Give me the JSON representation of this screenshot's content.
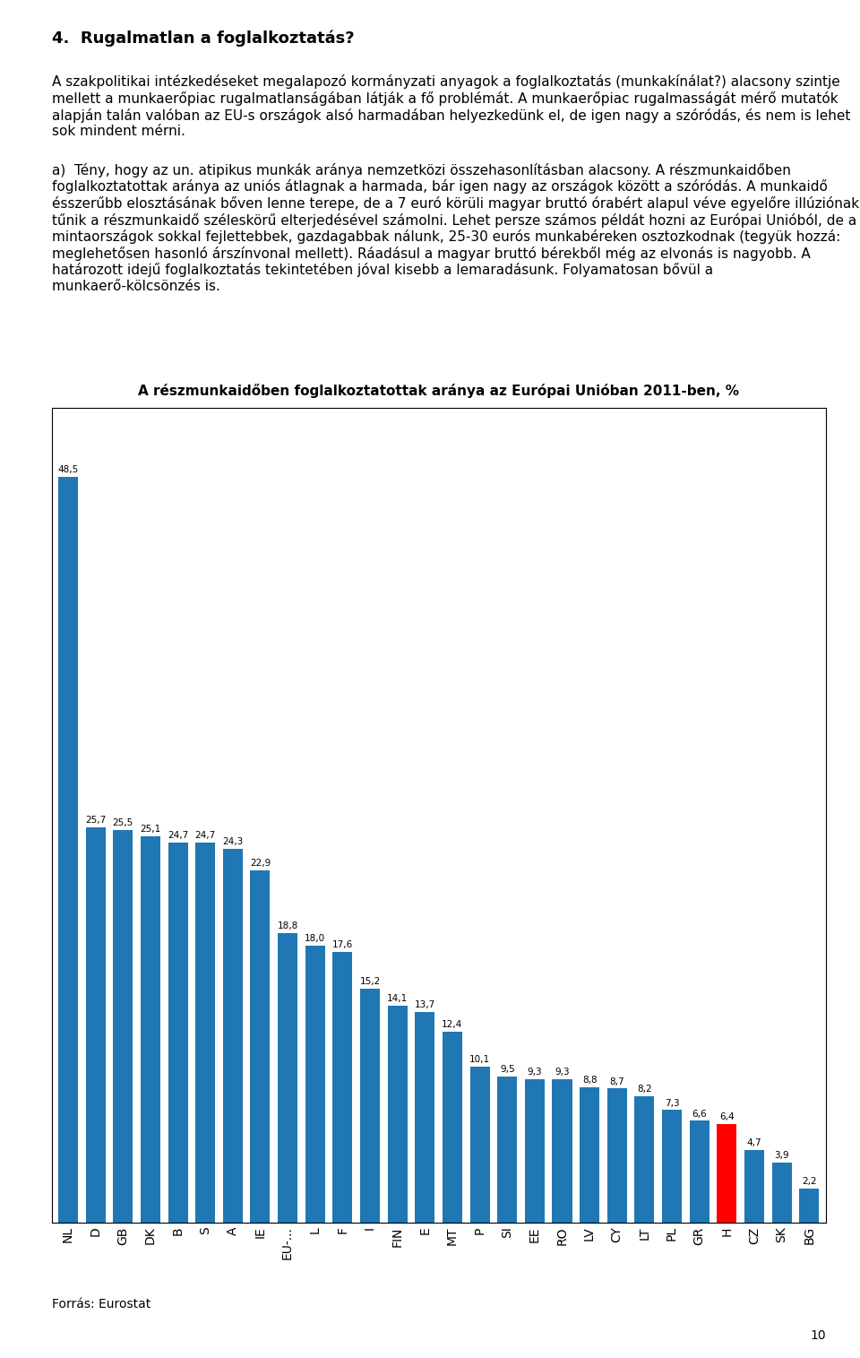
{
  "chart_data": {
    "type": "bar",
    "title": "A részmunkaidőben foglalkoztatottak aránya az Európai Unióban 2011-ben, %",
    "categories": [
      "NL",
      "D",
      "GB",
      "DK",
      "B",
      "S",
      "A",
      "IE",
      "EU-...",
      "L",
      "F",
      "I",
      "FIN",
      "E",
      "MT",
      "P",
      "SI",
      "EE",
      "RO",
      "LV",
      "CY",
      "LT",
      "PL",
      "GR",
      "H",
      "CZ",
      "SK",
      "BG"
    ],
    "values": [
      48.5,
      25.7,
      25.5,
      25.1,
      24.7,
      24.7,
      24.3,
      22.9,
      18.8,
      18.0,
      17.6,
      15.2,
      14.1,
      13.7,
      12.4,
      10.1,
      9.5,
      9.3,
      9.3,
      8.8,
      8.7,
      8.2,
      7.3,
      6.6,
      6.4,
      4.7,
      3.9,
      2.2
    ],
    "value_labels": [
      "48,5",
      "25,7",
      "25,5",
      "25,1",
      "24,7",
      "24,7",
      "24,3",
      "22,9",
      "18,8",
      "18,0",
      "17,6",
      "15,2",
      "14,1",
      "13,7",
      "12,4",
      "10,1",
      "9,5",
      "9,3",
      "9,3",
      "8,8",
      "8,7",
      "8,2",
      "7,3",
      "6,6",
      "6,4",
      "4,7",
      "3,9",
      "2,2"
    ],
    "colors": [
      "#1f77b4",
      "#1f77b4",
      "#1f77b4",
      "#1f77b4",
      "#1f77b4",
      "#1f77b4",
      "#1f77b4",
      "#1f77b4",
      "#1f77b4",
      "#1f77b4",
      "#1f77b4",
      "#1f77b4",
      "#1f77b4",
      "#1f77b4",
      "#1f77b4",
      "#1f77b4",
      "#1f77b4",
      "#1f77b4",
      "#1f77b4",
      "#1f77b4",
      "#1f77b4",
      "#1f77b4",
      "#1f77b4",
      "#1f77b4",
      "#FF0000",
      "#1f77b4",
      "#1f77b4",
      "#1f77b4"
    ],
    "ylim": [
      0,
      53
    ],
    "data_labels": true,
    "tick_labels": "x",
    "grid": false,
    "annotations": [
      "4.  Rugalmatlan a foglalkoztatás?",
      "A szakpolitikai intézkedéseket megalapozó kormányzati anyagok a foglalkoztatás (munkakínálat?) alacsony szintje mellett a munkaerőpiac rugalmatlanságában látják a fő problémát. A munkaerőpiac rugalmasságát mérő mutatók alapján talán valóban az EU-s országok alsó harmadában helyezkedünk el, de igen nagy a szóródás, és nem is lehet sok mindent mérni.",
      "a)  Tény, hogy az un. atipikus munkák aránya nemzetközi összehasonlításban alacsony. A részmunkaidőben foglalkoztatottak aránya az uniós átlagnak a harmada, bár igen nagy az országok között a szóródás. A munkaidő ésszerűbb elosztásának bőven lenne terepe, de a 7 euró körüli magyar bruttó órabért alapul véve egyelőre illúziónak tűnik a részmunkaidő széleskörű elterjedésével számolni. Lehet persze számos példát hozni az Európai Unióból, de a mintaországok sokkal fejlettebbek, gazdagabbak nálunk, 25-30 eurós munkabéreken osztozkodnak (tegyük hozzá: meglehetősen hasonló árszínvonal mellett). Ráadásul a magyar bruttó bérekből még az elvonás is nagyobb. A határozott idejű foglalkoztatás tekintetében jóval kisebb a lemaradásunk. Folyamatosan bővül a munkaerő-kölcsönzés is.",
      "Forrás: Eurostat",
      "10"
    ]
  }
}
